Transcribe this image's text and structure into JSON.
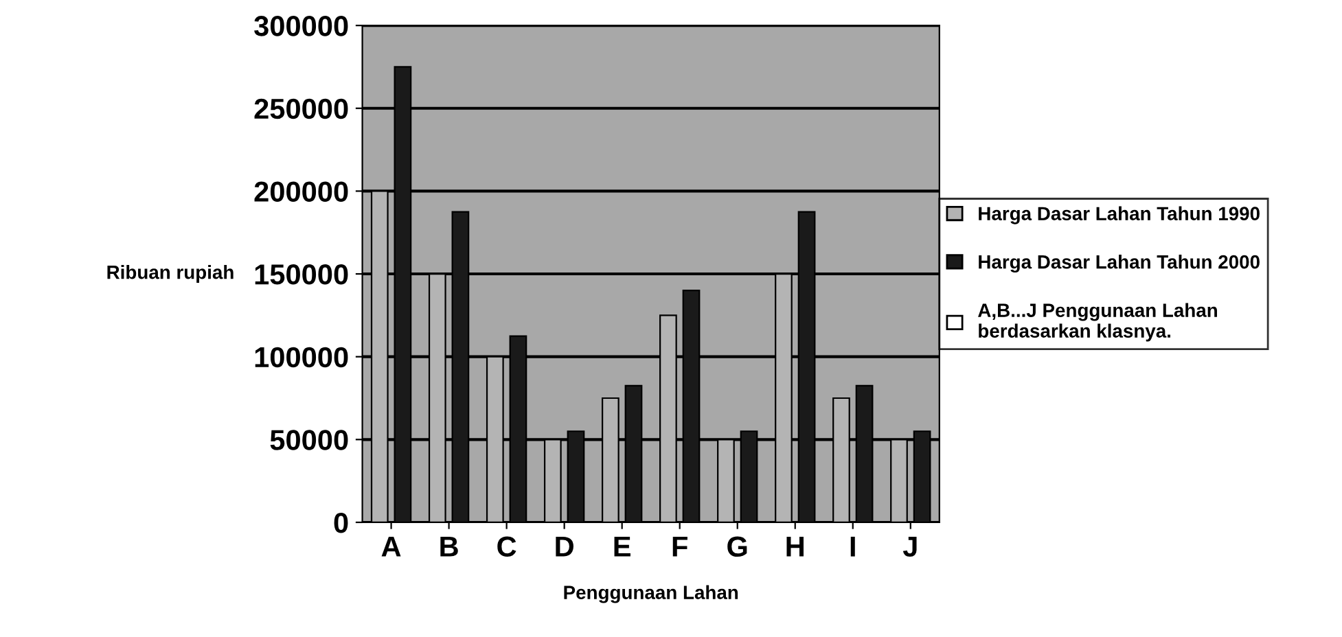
{
  "chart_data": {
    "type": "bar",
    "xlabel": "Penggunaan Lahan",
    "ylabel": "Ribuan rupiah",
    "categories": [
      "A",
      "B",
      "C",
      "D",
      "E",
      "F",
      "G",
      "H",
      "I",
      "J"
    ],
    "series": [
      {
        "name": "Harga Dasar Lahan Tahun 1990",
        "color": "#b4b4b4",
        "values": [
          200000,
          150000,
          100000,
          50000,
          75000,
          125000,
          50000,
          150000,
          75000,
          50000
        ]
      },
      {
        "name": "Harga Dasar Lahan Tahun 2000",
        "color": "#1a1a1a",
        "values": [
          275000,
          187500,
          112500,
          55000,
          82500,
          140000,
          55000,
          187500,
          82500,
          55000
        ]
      },
      {
        "name": "A,B...J Penggunaan Lahan\nberdasarkan klasnya.",
        "color": "#ffffff",
        "values": [
          null,
          null,
          null,
          null,
          null,
          null,
          null,
          null,
          null,
          null
        ]
      }
    ],
    "ylim": [
      0,
      300000
    ],
    "yticks": [
      0,
      50000,
      100000,
      150000,
      200000,
      250000,
      300000
    ],
    "grid": "y",
    "legend": "right"
  }
}
